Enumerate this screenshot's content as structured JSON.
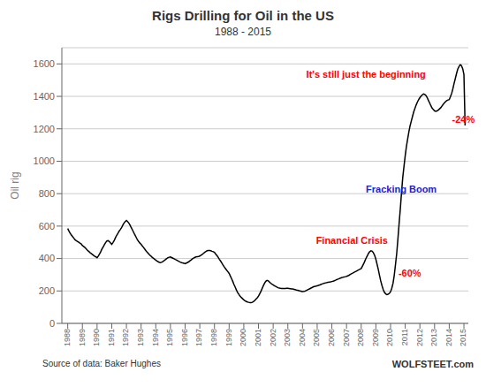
{
  "chart_data": {
    "type": "line",
    "title": "Rigs Drilling for Oil in the US",
    "subtitle": "1988 - 2015",
    "ylabel": "Oil rig",
    "source_text": "Source of data: Baker Hughes",
    "watermark": "WOLFSTEET.com",
    "grid": true,
    "color": "#000000",
    "xlim": [
      1987.6,
      2015.3
    ],
    "xticks": [
      1988,
      1989,
      1990,
      1991,
      1992,
      1993,
      1994,
      1995,
      1996,
      1997,
      1998,
      1999,
      2000,
      2001,
      2002,
      2003,
      2004,
      2005,
      2006,
      2007,
      2008,
      2009,
      2010,
      2011,
      2012,
      2013,
      2014,
      2015
    ],
    "ylim": [
      0,
      1700
    ],
    "yticks": [
      0,
      200,
      400,
      600,
      800,
      1000,
      1200,
      1400,
      1600
    ],
    "annotations": [
      {
        "text": "Fracking   Boom",
        "x": 2011.3,
        "y": 830,
        "color": "#2222cc"
      },
      {
        "text": "Financial Crisis",
        "x": 2008.1,
        "y": 510,
        "color": "red"
      },
      {
        "text": "-60%",
        "x": 2010.42,
        "y": 310,
        "color": "red"
      },
      {
        "text": "It's still just the beginning",
        "x": 2012.95,
        "y": 1535,
        "color": "red"
      },
      {
        "text": "-24%",
        "x": 2014.48,
        "y": 1260,
        "color": "red"
      }
    ],
    "x": [
      1988.0,
      1988.08,
      1988.17,
      1988.25,
      1988.33,
      1988.42,
      1988.5,
      1988.58,
      1988.67,
      1988.75,
      1988.83,
      1988.92,
      1989.0,
      1989.08,
      1989.17,
      1989.25,
      1989.33,
      1989.42,
      1989.5,
      1989.58,
      1989.67,
      1989.75,
      1989.83,
      1989.92,
      1990.0,
      1990.08,
      1990.17,
      1990.25,
      1990.33,
      1990.42,
      1990.5,
      1990.58,
      1990.67,
      1990.75,
      1990.83,
      1990.92,
      1991.0,
      1991.08,
      1991.17,
      1991.25,
      1991.33,
      1991.42,
      1991.5,
      1991.58,
      1991.67,
      1991.75,
      1991.83,
      1991.92,
      1992.0,
      1992.08,
      1992.17,
      1992.25,
      1992.33,
      1992.42,
      1992.5,
      1992.58,
      1992.67,
      1992.75,
      1992.83,
      1992.92,
      1993.0,
      1993.08,
      1993.17,
      1993.25,
      1993.33,
      1993.42,
      1993.5,
      1993.58,
      1993.67,
      1993.75,
      1993.83,
      1993.92,
      1994.0,
      1994.08,
      1994.17,
      1994.25,
      1994.33,
      1994.42,
      1994.5,
      1994.58,
      1994.67,
      1994.75,
      1994.83,
      1994.92,
      1995.0,
      1995.08,
      1995.17,
      1995.25,
      1995.33,
      1995.42,
      1995.5,
      1995.58,
      1995.67,
      1995.75,
      1995.83,
      1995.92,
      1996.0,
      1996.08,
      1996.17,
      1996.25,
      1996.33,
      1996.42,
      1996.5,
      1996.58,
      1996.67,
      1996.75,
      1996.83,
      1996.92,
      1997.0,
      1997.08,
      1997.17,
      1997.25,
      1997.33,
      1997.42,
      1997.5,
      1997.58,
      1997.67,
      1997.75,
      1997.83,
      1997.92,
      1998.0,
      1998.08,
      1998.17,
      1998.25,
      1998.33,
      1998.42,
      1998.5,
      1998.58,
      1998.67,
      1998.75,
      1998.83,
      1998.92,
      1999.0,
      1999.08,
      1999.17,
      1999.25,
      1999.33,
      1999.42,
      1999.5,
      1999.58,
      1999.67,
      1999.75,
      1999.83,
      1999.92,
      2000.0,
      2000.08,
      2000.17,
      2000.25,
      2000.33,
      2000.42,
      2000.5,
      2000.58,
      2000.67,
      2000.75,
      2000.83,
      2000.92,
      2001.0,
      2001.08,
      2001.17,
      2001.25,
      2001.33,
      2001.42,
      2001.5,
      2001.58,
      2001.67,
      2001.75,
      2001.83,
      2001.92,
      2002.0,
      2002.08,
      2002.17,
      2002.25,
      2002.33,
      2002.42,
      2002.5,
      2002.58,
      2002.67,
      2002.75,
      2002.83,
      2002.92,
      2003.0,
      2003.08,
      2003.17,
      2003.25,
      2003.33,
      2003.42,
      2003.5,
      2003.58,
      2003.67,
      2003.75,
      2003.83,
      2003.92,
      2004.0,
      2004.08,
      2004.17,
      2004.25,
      2004.33,
      2004.42,
      2004.5,
      2004.58,
      2004.67,
      2004.75,
      2004.83,
      2004.92,
      2005.0,
      2005.08,
      2005.17,
      2005.25,
      2005.33,
      2005.42,
      2005.5,
      2005.58,
      2005.67,
      2005.75,
      2005.83,
      2005.92,
      2006.0,
      2006.08,
      2006.17,
      2006.25,
      2006.33,
      2006.42,
      2006.5,
      2006.58,
      2006.67,
      2006.75,
      2006.83,
      2006.92,
      2007.0,
      2007.08,
      2007.17,
      2007.25,
      2007.33,
      2007.42,
      2007.5,
      2007.58,
      2007.67,
      2007.75,
      2007.83,
      2007.92,
      2008.0,
      2008.08,
      2008.17,
      2008.25,
      2008.33,
      2008.42,
      2008.5,
      2008.58,
      2008.67,
      2008.75,
      2008.83,
      2008.92,
      2009.0,
      2009.08,
      2009.17,
      2009.25,
      2009.33,
      2009.42,
      2009.5,
      2009.58,
      2009.67,
      2009.75,
      2009.83,
      2009.92,
      2010.0,
      2010.08,
      2010.17,
      2010.25,
      2010.33,
      2010.42,
      2010.5,
      2010.58,
      2010.67,
      2010.75,
      2010.83,
      2010.92,
      2011.0,
      2011.08,
      2011.17,
      2011.25,
      2011.33,
      2011.42,
      2011.5,
      2011.58,
      2011.67,
      2011.75,
      2011.83,
      2011.92,
      2012.0,
      2012.08,
      2012.17,
      2012.25,
      2012.33,
      2012.42,
      2012.5,
      2012.58,
      2012.67,
      2012.75,
      2012.83,
      2012.92,
      2013.0,
      2013.08,
      2013.17,
      2013.25,
      2013.33,
      2013.42,
      2013.5,
      2013.58,
      2013.67,
      2013.75,
      2013.83,
      2013.92,
      2014.0,
      2014.08,
      2014.17,
      2014.25,
      2014.33,
      2014.42,
      2014.5,
      2014.58,
      2014.67,
      2014.75,
      2014.83,
      2014.92,
      2015.0,
      2015.08
    ],
    "values": [
      585,
      570,
      555,
      545,
      535,
      525,
      515,
      510,
      505,
      500,
      495,
      490,
      480,
      475,
      468,
      460,
      452,
      445,
      438,
      432,
      426,
      420,
      415,
      410,
      405,
      415,
      428,
      442,
      458,
      472,
      485,
      498,
      508,
      510,
      505,
      496,
      488,
      498,
      512,
      528,
      542,
      555,
      568,
      578,
      590,
      605,
      618,
      628,
      635,
      628,
      618,
      605,
      590,
      575,
      560,
      545,
      530,
      515,
      505,
      495,
      488,
      478,
      468,
      458,
      448,
      438,
      430,
      422,
      415,
      408,
      402,
      396,
      390,
      385,
      380,
      376,
      375,
      378,
      382,
      388,
      394,
      400,
      405,
      408,
      410,
      406,
      402,
      398,
      394,
      390,
      386,
      382,
      378,
      375,
      373,
      371,
      368,
      372,
      376,
      380,
      386,
      392,
      398,
      403,
      407,
      410,
      412,
      413,
      415,
      420,
      426,
      432,
      438,
      443,
      448,
      450,
      450,
      448,
      445,
      442,
      438,
      428,
      418,
      408,
      396,
      384,
      372,
      360,
      348,
      338,
      328,
      318,
      308,
      292,
      275,
      258,
      240,
      222,
      205,
      190,
      178,
      168,
      160,
      152,
      145,
      140,
      135,
      132,
      130,
      128,
      128,
      130,
      135,
      142,
      150,
      158,
      168,
      182,
      198,
      215,
      232,
      248,
      260,
      265,
      262,
      255,
      248,
      242,
      238,
      232,
      228,
      224,
      220,
      218,
      216,
      215,
      215,
      215,
      215,
      216,
      216,
      215,
      214,
      213,
      212,
      210,
      208,
      206,
      204,
      202,
      200,
      198,
      196,
      197,
      199,
      202,
      206,
      210,
      214,
      218,
      222,
      226,
      228,
      230,
      232,
      234,
      237,
      240,
      243,
      246,
      248,
      250,
      252,
      254,
      255,
      256,
      258,
      260,
      263,
      266,
      270,
      273,
      276,
      279,
      282,
      284,
      286,
      288,
      290,
      293,
      297,
      302,
      306,
      310,
      314,
      318,
      322,
      326,
      330,
      334,
      338,
      352,
      368,
      385,
      402,
      418,
      432,
      442,
      448,
      445,
      435,
      418,
      395,
      365,
      330,
      295,
      262,
      232,
      208,
      192,
      182,
      178,
      180,
      185,
      195,
      215,
      248,
      295,
      358,
      432,
      518,
      612,
      712,
      810,
      898,
      972,
      1035,
      1090,
      1140,
      1182,
      1218,
      1250,
      1278,
      1305,
      1328,
      1348,
      1365,
      1380,
      1392,
      1402,
      1410,
      1415,
      1412,
      1405,
      1392,
      1375,
      1358,
      1342,
      1328,
      1318,
      1310,
      1308,
      1310,
      1315,
      1322,
      1330,
      1340,
      1350,
      1360,
      1368,
      1374,
      1378,
      1380,
      1398,
      1420,
      1448,
      1480,
      1512,
      1542,
      1568,
      1585,
      1595,
      1590,
      1570,
      1535,
      1220
    ]
  }
}
